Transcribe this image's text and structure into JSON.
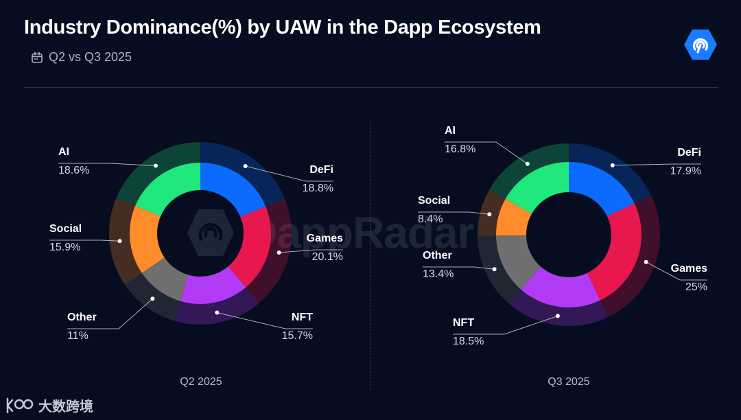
{
  "header": {
    "title": "Industry Dominance(%) by UAW in the Dapp Ecosystem",
    "subtitle": "Q2 vs Q3 2025",
    "watermark": "DappRadar"
  },
  "footer": {
    "brand": "大数跨境"
  },
  "colors": {
    "DeFi": "#0b6bff",
    "Games": "#e8184f",
    "NFT": "#b23cf5",
    "Other": "#6f6f6f",
    "Social": "#ff8c2a",
    "AI": "#20e87c",
    "background": "#060d20"
  },
  "chart_data": [
    {
      "type": "pie",
      "variant": "donut",
      "title": "Q2 2025",
      "categories": [
        "DeFi",
        "Games",
        "NFT",
        "Other",
        "Social",
        "AI"
      ],
      "values": [
        18.8,
        20.1,
        15.7,
        11,
        15.9,
        18.6
      ],
      "value_labels": [
        "18.8%",
        "20.1%",
        "15.7%",
        "11%",
        "15.9%",
        "18.6%"
      ]
    },
    {
      "type": "pie",
      "variant": "donut",
      "title": "Q3 2025",
      "categories": [
        "DeFi",
        "Games",
        "NFT",
        "Other",
        "Social",
        "AI"
      ],
      "values": [
        17.9,
        25,
        18.5,
        13.4,
        8.4,
        16.8
      ],
      "value_labels": [
        "17.9%",
        "25%",
        "18.5%",
        "13.4%",
        "8.4%",
        "16.8%"
      ]
    }
  ]
}
